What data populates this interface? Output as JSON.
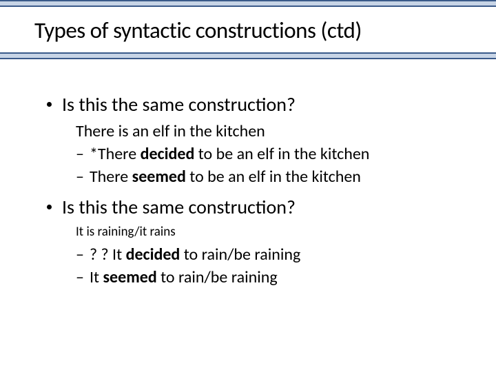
{
  "title": "Types of syntactic constructions (ctd)",
  "bullets": [
    {
      "text": "Is this the same construction?",
      "intro": "There is an elf in the kitchen",
      "intro_size": "normal",
      "subs": [
        {
          "pre": "*There ",
          "bold": "decided",
          "post": " to be an elf in the kitchen"
        },
        {
          "pre": "There ",
          "bold": "seemed",
          "post": " to be an elf in the kitchen"
        }
      ]
    },
    {
      "text": "Is this the same construction?",
      "intro": "It is raining/it rains",
      "intro_size": "small",
      "subs": [
        {
          "pre": "? ? It ",
          "bold": "decided",
          "post": " to rain/be raining"
        },
        {
          "pre": "It ",
          "bold": "seemed",
          "post": " to rain/be raining"
        }
      ]
    }
  ]
}
